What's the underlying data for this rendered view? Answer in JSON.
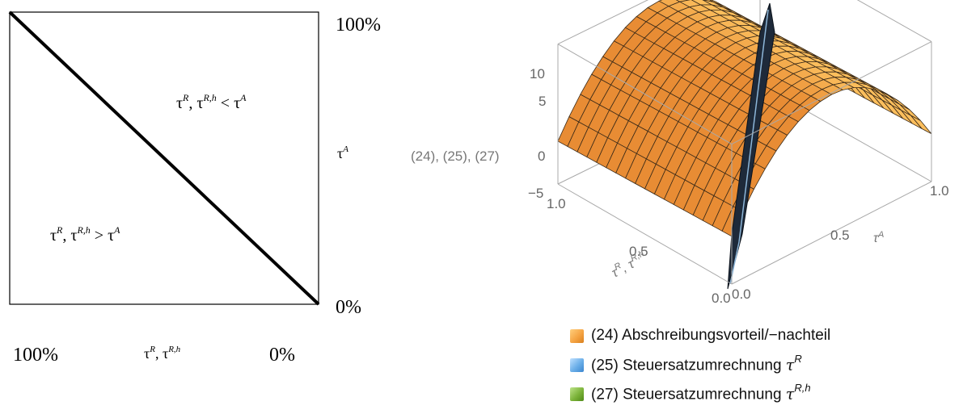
{
  "left": {
    "top_right_label": "100%",
    "bottom_right_label": "0%",
    "right_axis_symbol": "τ",
    "right_axis_sup": "A",
    "bottom_left_label": "100%",
    "bottom_right_x_label": "0%",
    "x_axis_symbol": "τ",
    "x_axis_sup1": "R",
    "x_axis_sep": ", ",
    "x_axis_symbol2": "τ",
    "x_axis_sup2": "R,h",
    "upper_region": {
      "t1": "τ",
      "s1": "R",
      "sep": ", ",
      "t2": "τ",
      "s2": "R,h",
      "op": " < ",
      "t3": "τ",
      "s3": "A"
    },
    "lower_region": {
      "t1": "τ",
      "s1": "R",
      "sep": ", ",
      "t2": "τ",
      "s2": "R,h",
      "op": " > ",
      "t3": "τ",
      "s3": "A"
    }
  },
  "chart_data": [
    {
      "type": "line",
      "x": [
        100,
        0
      ],
      "y": [
        100,
        0
      ],
      "xlim": [
        100,
        0
      ],
      "ylim": [
        0,
        100
      ]
    },
    {
      "type": "surface3d",
      "zlabel": "(24), (25), (27)",
      "z_ticks": [
        "10",
        "5",
        "0",
        "−5"
      ],
      "x_ticks": [
        "1.0",
        "0.5",
        "0.0"
      ],
      "y_ticks": [
        "0.0",
        "0.5",
        "1.0"
      ],
      "xlabel": {
        "t1": "τ",
        "s1": "R",
        "sep": ", ",
        "t2": "τ",
        "s2": "R,h"
      },
      "ylabel": {
        "t": "τ",
        "s": "A"
      },
      "zlim": [
        -5,
        12
      ],
      "series": [
        {
          "name": "(24) Abschreibungsvorteil/−nachteil",
          "color": "#f5a443"
        },
        {
          "name": "(25) Steuersatzumrechnung",
          "tau_sup": "R",
          "color": "#6aaee8"
        },
        {
          "name": "(27) Steuersatzumrechnung",
          "tau_sup": "R,h",
          "color": "#7cb33a"
        }
      ]
    }
  ]
}
